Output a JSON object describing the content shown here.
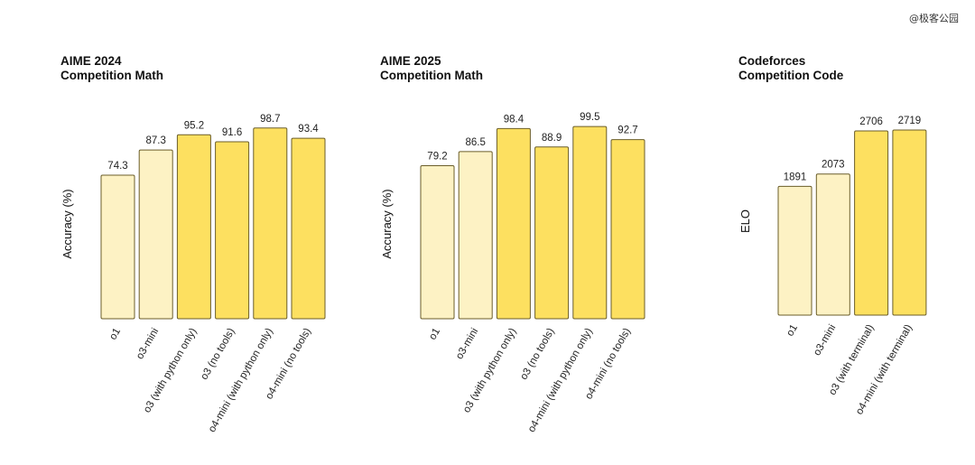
{
  "watermark": "@极客公园",
  "colors": {
    "light": "#fdf2c4",
    "mid": "#fde98f",
    "strong": "#fde060"
  },
  "chart_data": [
    {
      "type": "bar",
      "title": [
        "AIME 2024",
        "Competition Math"
      ],
      "xlabel": "",
      "ylabel": "Accuracy (%)",
      "ylim": [
        0,
        100
      ],
      "grid": false,
      "categories": [
        "o1",
        "o3-mini",
        "o3 (with python only)",
        "o3 (no tools)",
        "o4-mini (with python only)",
        "o4-mini (no tools)"
      ],
      "values": [
        74.3,
        87.3,
        95.2,
        91.6,
        98.7,
        93.4
      ],
      "value_labels": [
        "74.3",
        "87.3",
        "95.2",
        "91.6",
        "98.7",
        "93.4"
      ],
      "bar_colors": [
        "light",
        "light",
        "strong",
        "strong",
        "strong",
        "strong"
      ]
    },
    {
      "type": "bar",
      "title": [
        "AIME 2025",
        "Competition Math"
      ],
      "xlabel": "",
      "ylabel": "Accuracy (%)",
      "ylim": [
        0,
        100
      ],
      "grid": false,
      "categories": [
        "o1",
        "o3-mini",
        "o3 (with python only)",
        "o3 (no tools)",
        "o4-mini (with python only)",
        "o4-mini (no tools)"
      ],
      "values": [
        79.2,
        86.5,
        98.4,
        88.9,
        99.5,
        92.7
      ],
      "value_labels": [
        "79.2",
        "86.5",
        "98.4",
        "88.9",
        "99.5",
        "92.7"
      ],
      "bar_colors": [
        "light",
        "light",
        "strong",
        "strong",
        "strong",
        "strong"
      ]
    },
    {
      "type": "bar",
      "title": [
        "Codeforces",
        "Competition Code"
      ],
      "xlabel": "",
      "ylabel": "ELO",
      "ylim": [
        0,
        2719
      ],
      "grid": false,
      "categories": [
        "o1",
        "o3-mini",
        "o3 (with terminal)",
        "o4-mini (with terminal)"
      ],
      "values": [
        1891,
        2073,
        2706,
        2719
      ],
      "value_labels": [
        "1891",
        "2073",
        "2706",
        "2719"
      ],
      "bar_colors": [
        "light",
        "light",
        "strong",
        "strong"
      ]
    }
  ]
}
